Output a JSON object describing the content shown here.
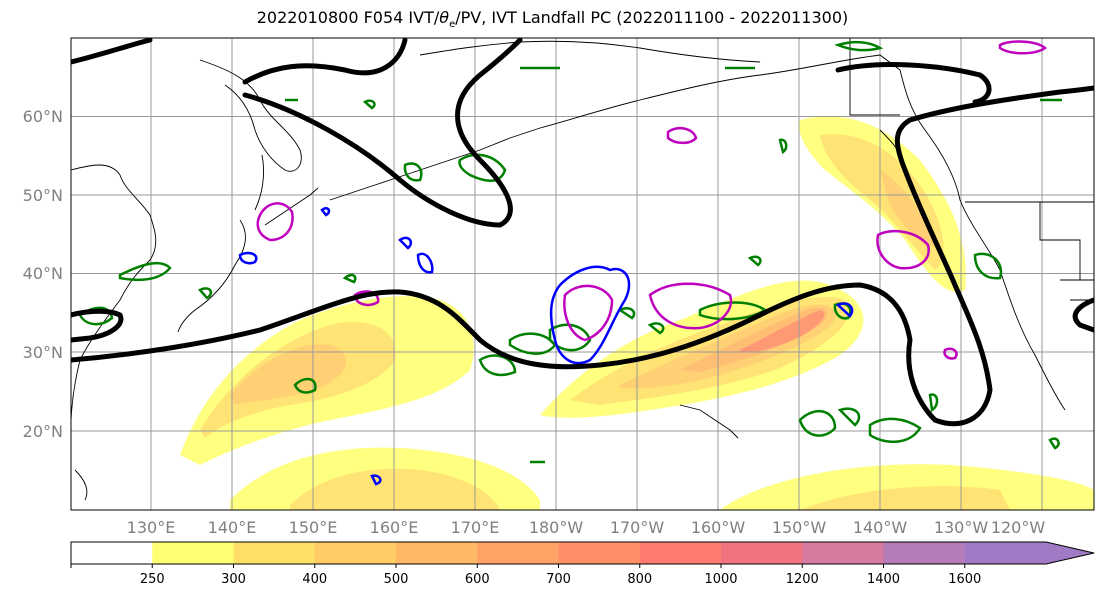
{
  "title": {
    "run": "2022010800 F054 IVT/",
    "theta": "θ",
    "theta_sub": "e",
    "rest": "/PV, IVT Landfall PC (2022011100 - 2022011300)"
  },
  "map": {
    "lat_labels": [
      "60°N",
      "50°N",
      "40°N",
      "30°N",
      "20°N"
    ],
    "lon_labels": [
      "130°E",
      "140°E",
      "150°E",
      "160°E",
      "170°E",
      "180°W",
      "170°W",
      "160°W",
      "150°W",
      "140°W",
      "130°W",
      "120°W"
    ]
  },
  "colorbar": {
    "ticks": [
      "250",
      "300",
      "400",
      "500",
      "600",
      "700",
      "800",
      "1000",
      "1200",
      "1400",
      "1600"
    ],
    "colors": [
      "#ffffff",
      "#ffff73",
      "#ffe066",
      "#ffcc66",
      "#ffb866",
      "#ffa366",
      "#ff8f66",
      "#ff7a70",
      "#f07380",
      "#d77aa0",
      "#b57ab8",
      "#a07ac4"
    ]
  },
  "colors": {
    "pv": "#000000",
    "theta_green": "#008000",
    "blue": "#0000ff",
    "magenta": "#bf00bf",
    "grid": "#999999"
  }
}
